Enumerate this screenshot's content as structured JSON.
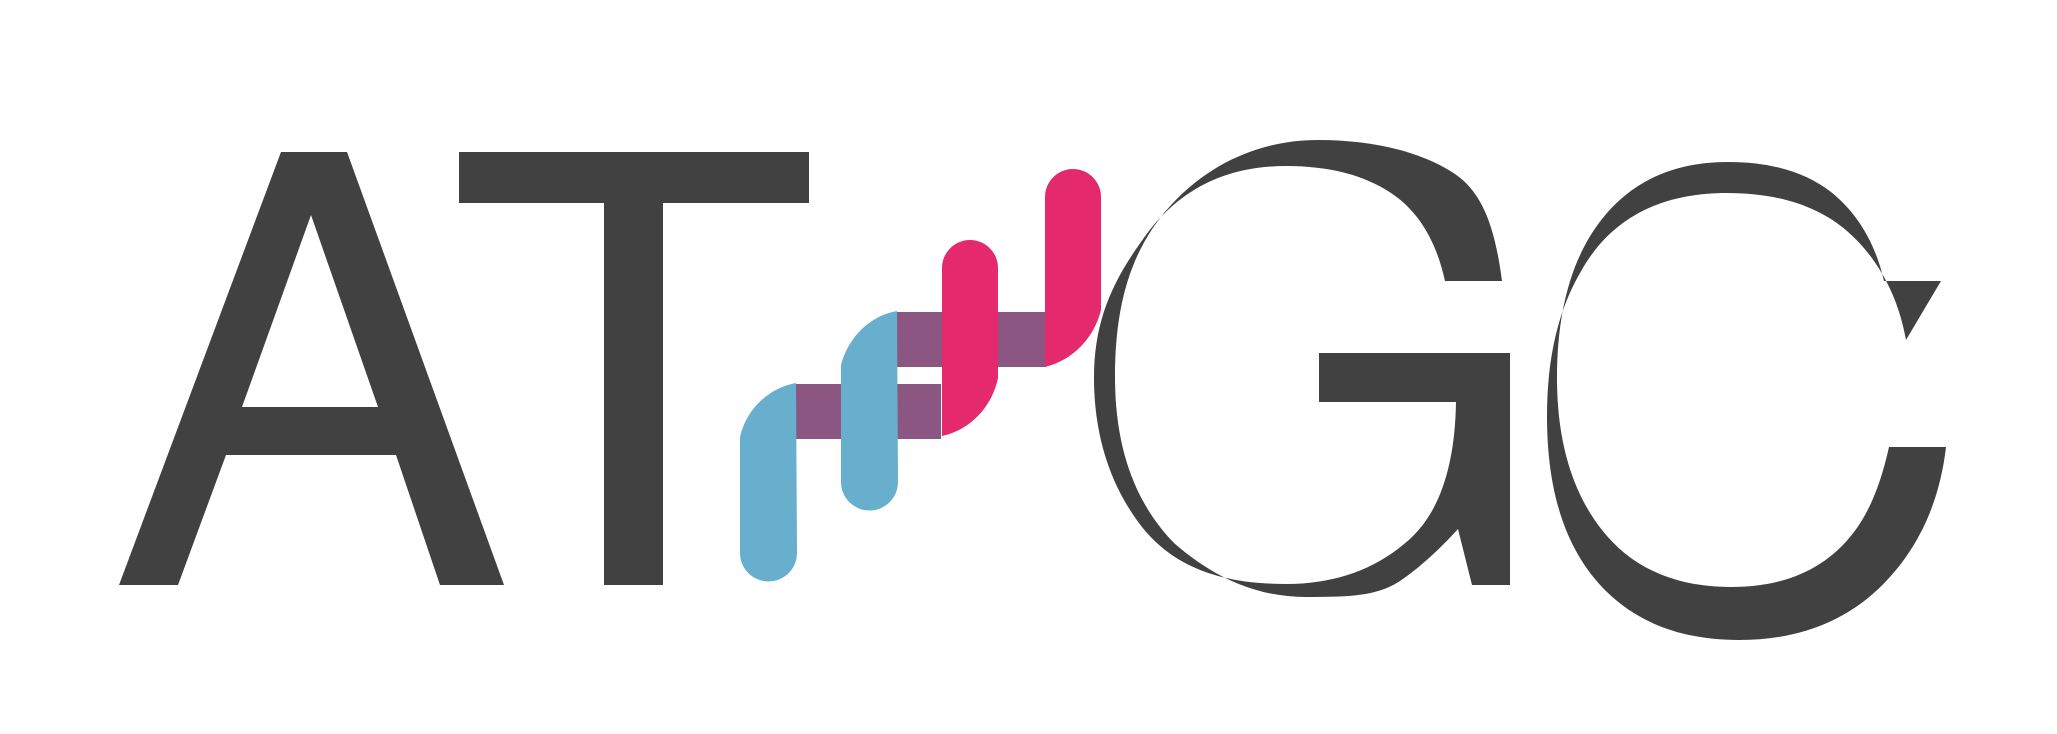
{
  "logo": {
    "letters": [
      "A",
      "T",
      "G",
      "C"
    ],
    "colors": {
      "text": "#414141",
      "blue_strand": "#67afcd",
      "pink_strand": "#e4296c",
      "base_pair": "#8c5683",
      "background": "#ffffff"
    }
  }
}
